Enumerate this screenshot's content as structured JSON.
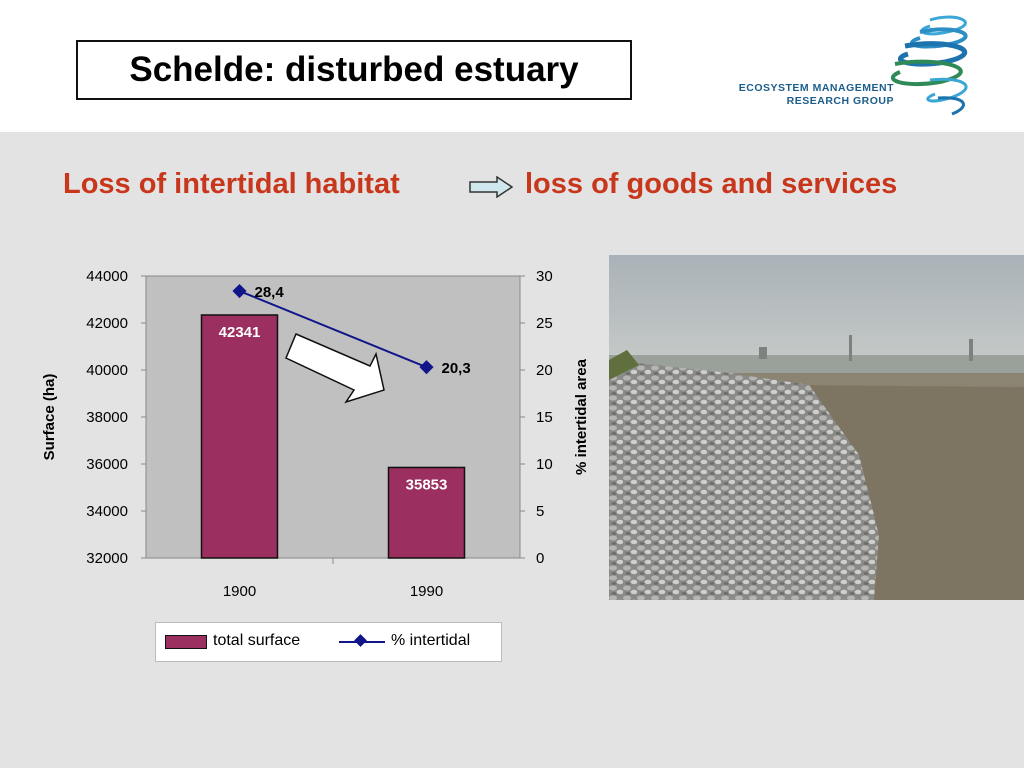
{
  "slide": {
    "title": "Schelde: disturbed estuary",
    "logo_line1": "ECOSYSTEM MANAGEMENT",
    "logo_line2": "RESEARCH GROUP",
    "subtitle_left": "Loss of intertidal habitat",
    "subtitle_right": "loss of goods and services",
    "accent_color": "#c8371b",
    "arrow_icon": "right-arrow-icon",
    "photo_description_icon": "estuary-riprap-photo"
  },
  "chart_data": {
    "type": "bar",
    "categories": [
      "1900",
      "1990"
    ],
    "series": [
      {
        "name": "total surface",
        "type": "bar",
        "axis": "left",
        "values": [
          42341,
          35853
        ],
        "color": "#9b2f5f"
      },
      {
        "name": "% intertidal",
        "type": "line",
        "axis": "right",
        "values": [
          28.4,
          20.3
        ],
        "color": "#10168a"
      }
    ],
    "bar_labels": [
      "42341",
      "35853"
    ],
    "line_labels": [
      "28,4",
      "20,3"
    ],
    "ylabel": "Surface (ha)",
    "y2label": "% intertidal area",
    "ylim": [
      32000,
      44000
    ],
    "y2lim": [
      0,
      30
    ],
    "yticks": [
      "32000",
      "34000",
      "36000",
      "38000",
      "40000",
      "42000",
      "44000"
    ],
    "y2ticks": [
      "0",
      "5",
      "10",
      "15",
      "20",
      "25",
      "30"
    ],
    "plot_background": "#c0c0c0",
    "grid": false,
    "legend": "bottom"
  }
}
